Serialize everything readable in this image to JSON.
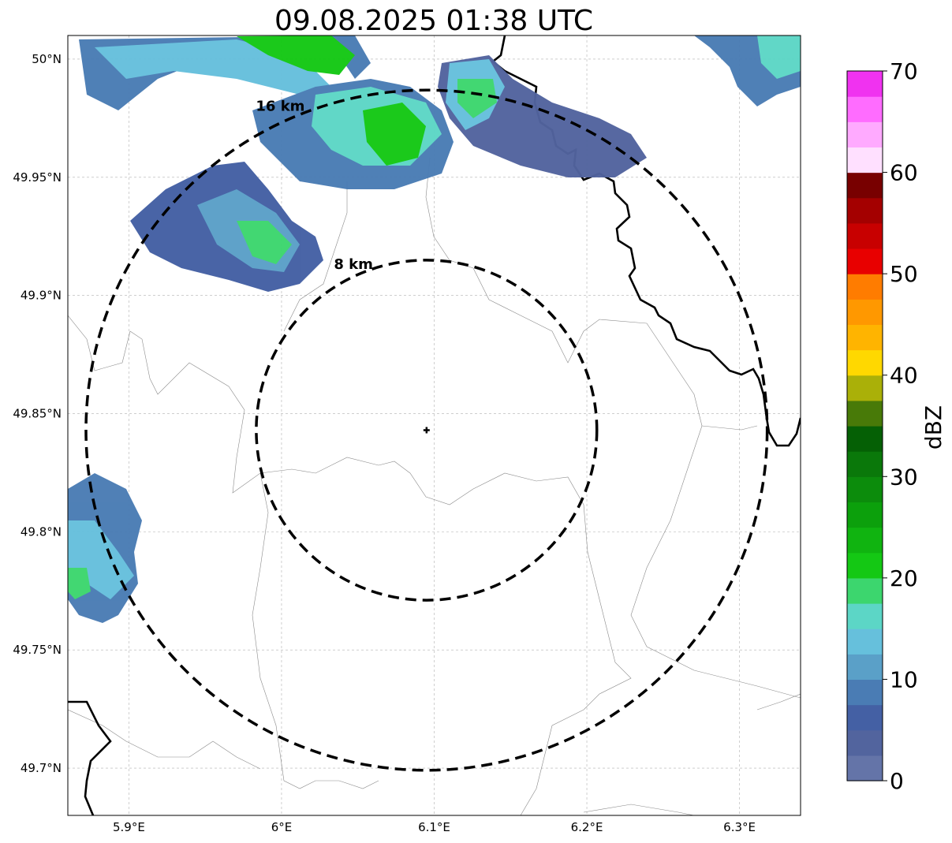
{
  "title": "09.08.2025 01:38 UTC",
  "map": {
    "lon_range": [
      5.86,
      6.34
    ],
    "lat_range": [
      49.68,
      50.01
    ],
    "radar_center": {
      "lon": 6.095,
      "lat": 49.843
    },
    "lat_ticks": [
      {
        "value": 50.0,
        "label": "50°N"
      },
      {
        "value": 49.95,
        "label": "49.95°N"
      },
      {
        "value": 49.9,
        "label": "49.9°N"
      },
      {
        "value": 49.85,
        "label": "49.85°N"
      },
      {
        "value": 49.8,
        "label": "49.8°N"
      },
      {
        "value": 49.75,
        "label": "49.75°N"
      },
      {
        "value": 49.7,
        "label": "49.7°N"
      }
    ],
    "lon_ticks": [
      {
        "value": 5.9,
        "label": "5.9°E"
      },
      {
        "value": 6.0,
        "label": "6°E"
      },
      {
        "value": 6.1,
        "label": "6.1°E"
      },
      {
        "value": 6.2,
        "label": "6.2°E"
      },
      {
        "value": 6.3,
        "label": "6.3°E"
      }
    ],
    "range_rings": [
      {
        "radius_km": 8,
        "label": "8 km"
      },
      {
        "radius_km": 16,
        "label": "16 km"
      }
    ]
  },
  "colorbar": {
    "label": "dBZ",
    "min": 0,
    "max": 70,
    "ticks": [
      {
        "value": 0,
        "label": "0"
      },
      {
        "value": 10,
        "label": "10"
      },
      {
        "value": 20,
        "label": "20"
      },
      {
        "value": 30,
        "label": "30"
      },
      {
        "value": 40,
        "label": "40"
      },
      {
        "value": 50,
        "label": "50"
      },
      {
        "value": 60,
        "label": "60"
      },
      {
        "value": 70,
        "label": "70"
      }
    ],
    "colors": [
      "#6474a8",
      "#52649e",
      "#4460a4",
      "#4a7cb4",
      "#5aa0c8",
      "#66c0dc",
      "#5cd6c6",
      "#3cd66e",
      "#14c814",
      "#10b410",
      "#0ca00c",
      "#0c8c0c",
      "#0a780a",
      "#056005",
      "#487a08",
      "#aab008",
      "#ffd800",
      "#ffb400",
      "#ff9800",
      "#ff7c00",
      "#e80000",
      "#c80000",
      "#a40000",
      "#780000",
      "#ffe0ff",
      "#ffaaff",
      "#ff6cff",
      "#f032f0"
    ]
  }
}
